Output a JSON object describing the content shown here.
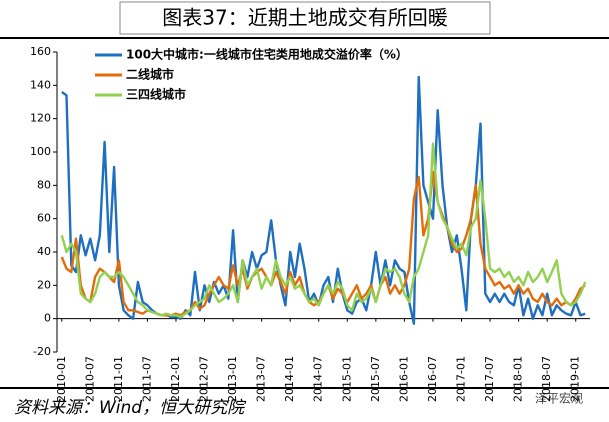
{
  "chart_data": {
    "type": "line",
    "title": "图表37：近期土地成交有所回暖",
    "source": "资料来源：Wind，恒大研究院",
    "watermark": "泽平宏观",
    "categories": [
      "2010-01",
      null,
      null,
      null,
      null,
      null,
      "2010-07",
      null,
      null,
      null,
      null,
      null,
      "2011-01",
      null,
      null,
      null,
      null,
      null,
      "2011-07",
      null,
      null,
      null,
      null,
      null,
      "2012-01",
      null,
      null,
      null,
      null,
      null,
      "2012-07",
      null,
      null,
      null,
      null,
      null,
      "2013-01",
      null,
      null,
      null,
      null,
      null,
      "2013-07",
      null,
      null,
      null,
      null,
      null,
      "2014-01",
      null,
      null,
      null,
      null,
      null,
      "2014-07",
      null,
      null,
      null,
      null,
      null,
      "2015-01",
      null,
      null,
      null,
      null,
      null,
      "2015-07",
      null,
      null,
      null,
      null,
      null,
      "2016-01",
      null,
      null,
      null,
      null,
      null,
      "2016-07",
      null,
      null,
      null,
      null,
      null,
      "2017-01",
      null,
      null,
      null,
      null,
      null,
      "2017-07",
      null,
      null,
      null,
      null,
      null,
      "2018-01",
      null,
      null,
      null,
      null,
      null,
      "2018-07",
      null,
      null,
      null,
      null,
      null,
      "2019-01",
      null,
      null
    ],
    "series": [
      {
        "name": "100大中城市:一线城市住宅类用地成交溢价率（%）",
        "color": "#1f6fc0",
        "values": [
          136,
          134,
          32,
          28,
          50,
          38,
          48,
          35,
          50,
          106,
          40,
          91,
          20,
          5,
          2,
          0,
          22,
          10,
          8,
          5,
          3,
          2,
          2,
          1,
          1,
          0,
          5,
          2,
          28,
          5,
          20,
          10,
          22,
          15,
          20,
          12,
          53,
          10,
          35,
          25,
          40,
          30,
          38,
          40,
          59,
          35,
          20,
          8,
          40,
          25,
          45,
          30,
          10,
          15,
          8,
          20,
          25,
          10,
          30,
          15,
          5,
          3,
          10,
          12,
          5,
          20,
          40,
          20,
          35,
          20,
          35,
          30,
          28,
          10,
          -3,
          145,
          80,
          70,
          60,
          125,
          80,
          55,
          40,
          50,
          30,
          5,
          60,
          80,
          117,
          15,
          10,
          15,
          10,
          15,
          10,
          8,
          20,
          2,
          12,
          0,
          8,
          2,
          15,
          2,
          8,
          5,
          3,
          2,
          10,
          2,
          3
        ]
      },
      {
        "name": "二线城市",
        "color": "#e36c0a",
        "values": [
          37,
          30,
          28,
          48,
          20,
          12,
          10,
          25,
          30,
          28,
          25,
          22,
          35,
          10,
          5,
          5,
          4,
          3,
          5,
          4,
          3,
          2,
          2,
          2,
          3,
          2,
          4,
          5,
          10,
          6,
          8,
          15,
          20,
          25,
          20,
          18,
          32,
          20,
          30,
          18,
          25,
          28,
          30,
          25,
          20,
          28,
          22,
          15,
          28,
          20,
          25,
          15,
          10,
          8,
          10,
          15,
          20,
          12,
          18,
          15,
          10,
          15,
          20,
          12,
          15,
          20,
          10,
          20,
          25,
          15,
          20,
          15,
          20,
          30,
          72,
          85,
          50,
          60,
          88,
          70,
          62,
          55,
          45,
          40,
          42,
          50,
          60,
          80,
          45,
          30,
          25,
          20,
          22,
          18,
          20,
          15,
          20,
          15,
          18,
          12,
          10,
          15,
          10,
          8,
          12,
          8,
          10,
          8,
          12,
          18,
          20
        ]
      },
      {
        "name": "三四线城市",
        "color": "#92d050",
        "values": [
          50,
          40,
          45,
          40,
          15,
          12,
          10,
          15,
          25,
          28,
          25,
          25,
          28,
          25,
          20,
          15,
          10,
          8,
          5,
          4,
          3,
          2,
          3,
          2,
          2,
          1,
          3,
          5,
          8,
          10,
          12,
          20,
          15,
          10,
          12,
          15,
          20,
          10,
          35,
          20,
          25,
          30,
          18,
          25,
          20,
          35,
          25,
          20,
          25,
          18,
          20,
          15,
          10,
          12,
          8,
          15,
          20,
          15,
          22,
          18,
          8,
          5,
          15,
          10,
          12,
          18,
          10,
          20,
          30,
          28,
          30,
          25,
          15,
          10,
          25,
          30,
          40,
          50,
          105,
          70,
          60,
          55,
          48,
          42,
          45,
          38,
          55,
          60,
          83,
          60,
          30,
          28,
          30,
          25,
          28,
          22,
          25,
          20,
          28,
          22,
          25,
          30,
          22,
          28,
          35,
          15,
          10,
          8,
          10,
          15,
          22
        ]
      }
    ],
    "ylim": [
      -20,
      160
    ],
    "yticks": [
      -20,
      0,
      20,
      40,
      60,
      80,
      100,
      120,
      140,
      160
    ]
  }
}
